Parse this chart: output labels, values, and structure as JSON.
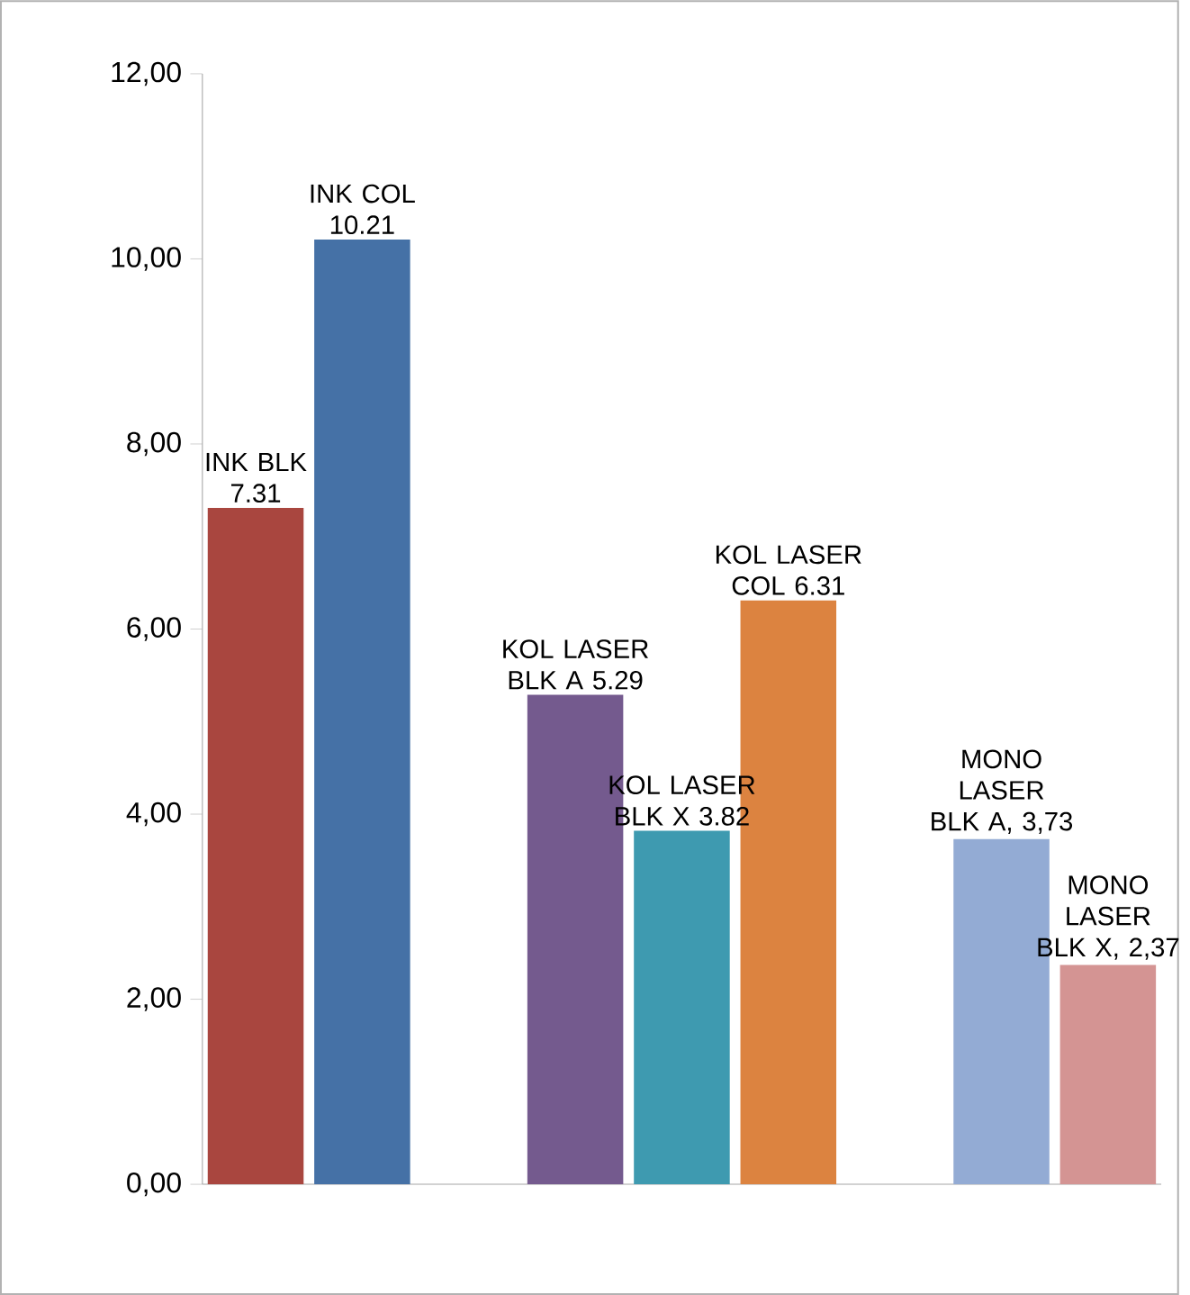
{
  "chart_data": {
    "type": "bar",
    "categories": [
      null,
      null,
      null,
      null,
      null,
      null,
      null,
      null,
      null
    ],
    "values": [
      7.31,
      10.21,
      null,
      5.29,
      3.82,
      6.31,
      null,
      3.73,
      2.37
    ],
    "colors": [
      "#a9463f",
      "#4571a6",
      "#ffffff",
      "#745a8e",
      "#3e9ab0",
      "#dc8340",
      "#ffffff",
      "#93abd4",
      "#d49493"
    ],
    "value_labels": [
      "INK BLK 7.31",
      "INK COL 10.21",
      null,
      "KOL LASER BLK A 5.29",
      "KOL LASER BLK X 3.82",
      "KOL LASER COL 6.31",
      null,
      "MONO LASER BLK A, 3,73",
      "MONO LASER BLK X, 2,37"
    ],
    "ylim": [
      0,
      12
    ],
    "yticks": [
      {
        "value": 0,
        "label": "0,00"
      },
      {
        "value": 2,
        "label": "2,00"
      },
      {
        "value": 4,
        "label": "4,00"
      },
      {
        "value": 6,
        "label": "6,00"
      },
      {
        "value": 8,
        "label": "8,00"
      },
      {
        "value": 10,
        "label": "10,00"
      },
      {
        "value": 12,
        "label": "12,00"
      }
    ]
  }
}
